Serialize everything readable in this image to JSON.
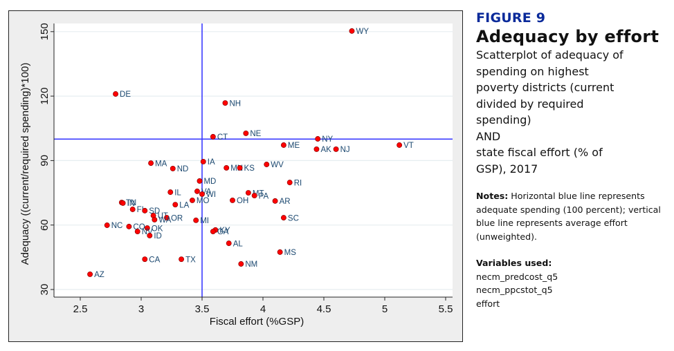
{
  "side_panel": {
    "figure_number": "FIGURE 9",
    "title": "Adequacy by effort",
    "description_lines": [
      "Scatterplot of adequacy of",
      "spending on highest",
      "poverty districts (current",
      "divided by required",
      "spending)",
      "AND",
      "state fiscal effort (% of",
      "GSP), 2017"
    ],
    "notes_label": "Notes:",
    "notes_text": " Horizontal blue line represents adequate spending (100 percent); vertical blue line represents average effort (unweighted).",
    "variables_label": "Variables used:",
    "variables": [
      "necm_predcost_q5",
      "necm_ppcstot_q5",
      "effort"
    ]
  },
  "chart_data": {
    "type": "scatter",
    "title": "",
    "xlabel": "Fiscal effort (%GSP)",
    "ylabel": "Adequacy ((current/required spending)*100)",
    "xlim": [
      2.3,
      5.56
    ],
    "ylim": [
      27,
      155
    ],
    "x_ticks": [
      2.5,
      3,
      3.5,
      4,
      4.5,
      5,
      5.5
    ],
    "x_tick_labels": [
      "2.5",
      "3",
      "3.5",
      "4",
      "4.5",
      "5",
      "5.5"
    ],
    "y_ticks": [
      30,
      60,
      90,
      120,
      150
    ],
    "y_tick_labels": [
      "30",
      "60",
      "90",
      "120",
      "150"
    ],
    "grid": "horizontal",
    "reference_lines": {
      "horizontal_y": 100,
      "vertical_x": 3.5,
      "color": "#3a3aff"
    },
    "colors": {
      "marker_fill": "#ff0000",
      "marker_stroke": "#8b0000",
      "label": "#1a476f",
      "plot_bg": "#ffffff",
      "frame_bg": "#eeeeee",
      "grid": "#e6eef0"
    },
    "legend": "none",
    "points": [
      {
        "label": "WY",
        "x": 4.73,
        "y": 150.3
      },
      {
        "label": "DE",
        "x": 2.79,
        "y": 121.0
      },
      {
        "label": "NH",
        "x": 3.69,
        "y": 116.8
      },
      {
        "label": "CT",
        "x": 3.59,
        "y": 101.1
      },
      {
        "label": "NE",
        "x": 3.86,
        "y": 102.7
      },
      {
        "label": "NY",
        "x": 4.45,
        "y": 100.1
      },
      {
        "label": "ME",
        "x": 4.17,
        "y": 97.2
      },
      {
        "label": "AK",
        "x": 4.44,
        "y": 95.3
      },
      {
        "label": "NJ",
        "x": 4.6,
        "y": 95.3
      },
      {
        "label": "VT",
        "x": 5.12,
        "y": 97.2
      },
      {
        "label": "IA",
        "x": 3.51,
        "y": 89.5
      },
      {
        "label": "MA",
        "x": 3.08,
        "y": 88.8
      },
      {
        "label": "ND",
        "x": 3.26,
        "y": 86.3
      },
      {
        "label": "MN",
        "x": 3.7,
        "y": 86.6
      },
      {
        "label": "KS",
        "x": 3.81,
        "y": 86.6
      },
      {
        "label": "WV",
        "x": 4.03,
        "y": 88.2
      },
      {
        "label": "MD",
        "x": 3.48,
        "y": 80.5
      },
      {
        "label": "RI",
        "x": 4.22,
        "y": 79.8
      },
      {
        "label": "IL",
        "x": 3.24,
        "y": 75.3
      },
      {
        "label": "VA",
        "x": 3.46,
        "y": 75.7
      },
      {
        "label": "WI",
        "x": 3.5,
        "y": 74.4
      },
      {
        "label": "MT",
        "x": 3.88,
        "y": 75.0
      },
      {
        "label": "PA",
        "x": 3.93,
        "y": 73.7
      },
      {
        "label": "MO",
        "x": 3.42,
        "y": 71.5
      },
      {
        "label": "OH",
        "x": 3.75,
        "y": 71.5
      },
      {
        "label": "AR",
        "x": 4.1,
        "y": 71.2
      },
      {
        "label": "TN",
        "x": 2.84,
        "y": 70.5
      },
      {
        "label": "IN",
        "x": 2.85,
        "y": 70.2
      },
      {
        "label": "LA",
        "x": 3.28,
        "y": 69.5
      },
      {
        "label": "FL",
        "x": 2.93,
        "y": 67.3
      },
      {
        "label": "SD",
        "x": 3.03,
        "y": 66.7
      },
      {
        "label": "UT",
        "x": 3.1,
        "y": 64.4
      },
      {
        "label": "OR",
        "x": 3.21,
        "y": 63.4
      },
      {
        "label": "SC",
        "x": 4.17,
        "y": 63.4
      },
      {
        "label": "WA",
        "x": 3.11,
        "y": 62.5
      },
      {
        "label": "MI",
        "x": 3.45,
        "y": 62.2
      },
      {
        "label": "NC",
        "x": 2.72,
        "y": 59.9
      },
      {
        "label": "CO",
        "x": 2.9,
        "y": 59.3
      },
      {
        "label": "OK",
        "x": 3.05,
        "y": 58.6
      },
      {
        "label": "KY",
        "x": 3.61,
        "y": 57.7
      },
      {
        "label": "GA",
        "x": 3.59,
        "y": 57.0
      },
      {
        "label": "NV",
        "x": 2.97,
        "y": 57.0
      },
      {
        "label": "ID",
        "x": 3.07,
        "y": 55.1
      },
      {
        "label": "AL",
        "x": 3.72,
        "y": 51.5
      },
      {
        "label": "MS",
        "x": 4.14,
        "y": 47.4
      },
      {
        "label": "CA",
        "x": 3.03,
        "y": 44.1
      },
      {
        "label": "TX",
        "x": 3.33,
        "y": 44.1
      },
      {
        "label": "NM",
        "x": 3.82,
        "y": 41.9
      },
      {
        "label": "AZ",
        "x": 2.58,
        "y": 37.1
      }
    ]
  }
}
